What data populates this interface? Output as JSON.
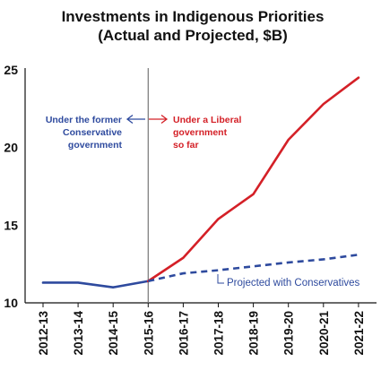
{
  "chart_data": {
    "type": "line",
    "title": [
      "Investments in Indigenous Priorities",
      "(Actual and Projected, $B)"
    ],
    "categories": [
      "2012-13",
      "2013-14",
      "2014-15",
      "2015-16",
      "2016-17",
      "2017-18",
      "2018-19",
      "2019-20",
      "2020-21",
      "2021-22"
    ],
    "ylim": [
      10,
      25
    ],
    "yticks": [
      10,
      15,
      20,
      25
    ],
    "grid": false,
    "series": [
      {
        "key": "historical",
        "values": [
          11.3,
          11.3,
          11.0,
          11.4,
          null,
          null,
          null,
          null,
          null,
          null
        ],
        "color": "#2e4a9e",
        "style": "solid"
      },
      {
        "key": "liberal",
        "values": [
          null,
          null,
          null,
          11.4,
          12.9,
          15.4,
          17.0,
          20.5,
          22.8,
          24.5
        ],
        "color": "#d42027",
        "style": "solid"
      },
      {
        "key": "projected",
        "values": [
          null,
          null,
          null,
          11.4,
          11.9,
          12.1,
          12.35,
          12.6,
          12.8,
          13.1
        ],
        "color": "#2e4a9e",
        "style": "dashed"
      }
    ],
    "divider_at": "2015-16",
    "annotations": {
      "former": [
        "Under the former",
        "Conservative",
        "government"
      ],
      "liberal": [
        "Under a Liberal",
        "government",
        "so far"
      ],
      "projected": "Projected with Conservatives"
    },
    "colors": {
      "blue": "#2e4a9e",
      "red": "#d42027",
      "divider": "#777777",
      "axis": "#111111",
      "text": "#111111"
    }
  }
}
